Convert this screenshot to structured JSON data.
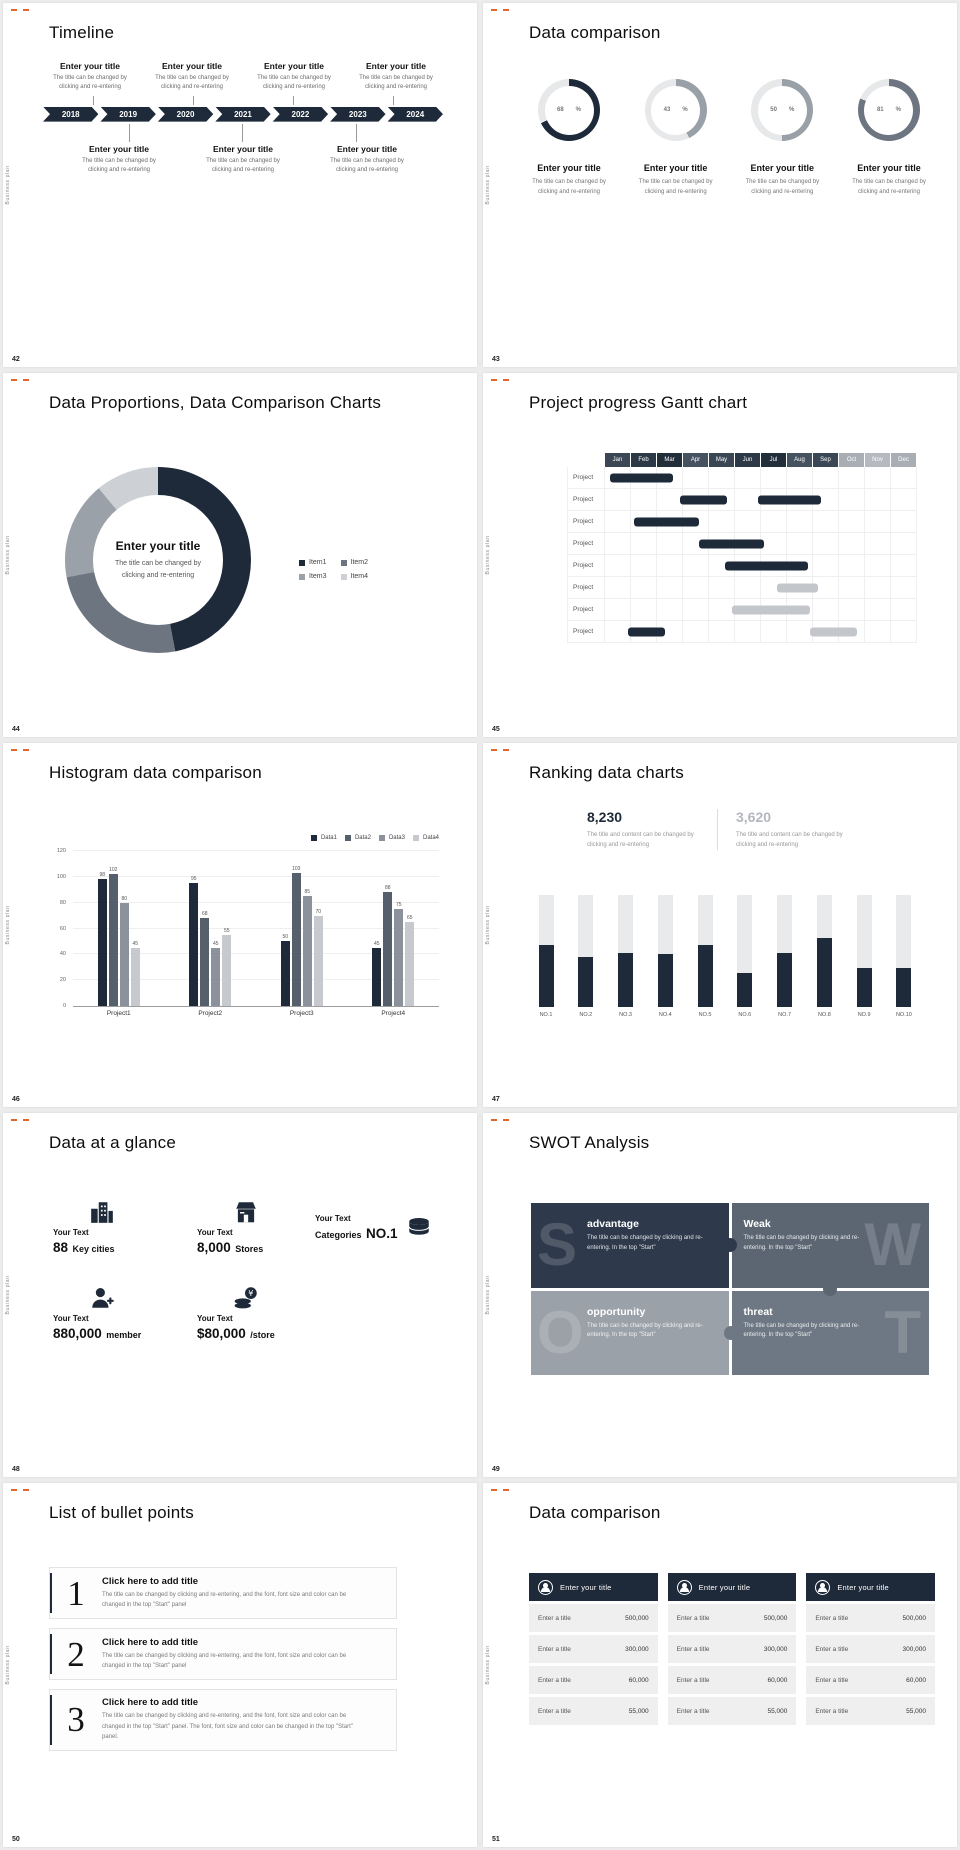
{
  "page": {
    "background": "#ececec",
    "accent_color": "#e2672e",
    "dark_color": "#1e2a39"
  },
  "common": {
    "sidebar_text": "Business plan",
    "percent_sign": "%"
  },
  "slides": {
    "s42": {
      "number": "42",
      "title": "Timeline",
      "years": [
        "2018",
        "2019",
        "2020",
        "2021",
        "2022",
        "2023",
        "2024"
      ],
      "top_items": [
        {
          "title": "Enter your title",
          "desc": "The title can be changed by clicking and re-entering"
        },
        {
          "title": "Enter your title",
          "desc": "The title can be changed by clicking and re-entering"
        },
        {
          "title": "Enter your title",
          "desc": "The title can be changed by clicking and re-entering"
        },
        {
          "title": "Enter your title",
          "desc": "The title can be changed by clicking and re-entering"
        }
      ],
      "bottom_items": [
        {
          "title": "Enter your title",
          "desc": "The title can be changed by clicking and re-entering"
        },
        {
          "title": "Enter your title",
          "desc": "The title can be changed by clicking and re-entering"
        },
        {
          "title": "Enter your title",
          "desc": "The title can be changed by clicking and re-entering"
        }
      ]
    },
    "s43": {
      "number": "43",
      "title": "Data comparison",
      "items": [
        {
          "title": "Enter your title",
          "desc": "The title can be changed by clicking and re-entering"
        },
        {
          "title": "Enter your title",
          "desc": "The title can be changed by clicking and re-entering"
        },
        {
          "title": "Enter your title",
          "desc": "The title can be changed by clicking and re-entering"
        },
        {
          "title": "Enter your title",
          "desc": "The title can be changed by clicking and re-entering"
        }
      ]
    },
    "s44": {
      "number": "44",
      "title": "Data Proportions, Data Comparison Charts",
      "center_title": "Enter your title",
      "center_desc": "The title can be changed by clicking and re-entering"
    },
    "s45": {
      "number": "45",
      "title": "Project progress Gantt chart"
    },
    "s46": {
      "number": "46",
      "title": "Histogram data comparison"
    },
    "s47": {
      "number": "47",
      "title": "Ranking data charts",
      "stat1": {
        "value": "8,230",
        "desc": "The title and content can be changed by clicking and re-entering",
        "color": "#1e2a39"
      },
      "stat2": {
        "value": "3,620",
        "desc": "The title and content can be changed by clicking and re-entering",
        "color": "#b3b7bd"
      }
    },
    "s48": {
      "number": "48",
      "title": "Data at a glance",
      "items": [
        {
          "icon": "buildings-icon",
          "label": "Your Text",
          "big": "88",
          "unit": "Key cities"
        },
        {
          "icon": "store-icon",
          "label": "Your Text",
          "big": "8,000",
          "unit": "Stores"
        },
        {
          "icon": "boxes-icon",
          "label": "Your Text",
          "prefix": "Categories",
          "big": "NO.1"
        },
        {
          "icon": "member-icon",
          "label": "Your Text",
          "big": "880,000",
          "unit": "member"
        },
        {
          "icon": "coins-icon",
          "label": "Your Text",
          "big": "$80,000",
          "unit": "/store"
        }
      ]
    },
    "s49": {
      "number": "49",
      "title": "SWOT Analysis",
      "quads": [
        {
          "letter": "S",
          "title": "advantage",
          "body": "The title can be changed by clicking and re-entering. In the top \"Start\"",
          "bg": "#2e3a4c"
        },
        {
          "letter": "W",
          "title": "Weak",
          "body": "The title can be changed by clicking and re-entering. In the top \"Start\"",
          "bg": "#5c6673"
        },
        {
          "letter": "O",
          "title": "opportunity",
          "body": "The title can be changed by clicking and re-entering. In the top \"Start\"",
          "bg": "#9ba1a9"
        },
        {
          "letter": "T",
          "title": "threat",
          "body": "The title can be changed by clicking and re-entering. In the top \"Start\"",
          "bg": "#6e7884"
        }
      ]
    },
    "s50": {
      "number": "50",
      "title": "List of bullet points",
      "items": [
        {
          "num": "1",
          "title": "Click here to add title",
          "body": "The title can be changed by clicking and re-entering, and the font, font size and color can be changed in the top \"Start\" panel"
        },
        {
          "num": "2",
          "title": "Click here to add title",
          "body": "The title can be changed by clicking and re-entering, and the font, font size and color can be changed in the top \"Start\" panel"
        },
        {
          "num": "3",
          "title": "Click here to add title",
          "body": "The title can be changed by clicking and re-entering, and the font, font size and color can be changed in the top \"Start\" panel. The font, font size and color can be changed in the top \"Start\" panel."
        }
      ]
    },
    "s51": {
      "number": "51",
      "title": "Data comparison",
      "columns": [
        {
          "header": "Enter your title",
          "rows": [
            [
              "Enter a title",
              "500,000"
            ],
            [
              "Enter a title",
              "300,000"
            ],
            [
              "Enter a title",
              "60,000"
            ],
            [
              "Enter a title",
              "55,000"
            ]
          ]
        },
        {
          "header": "Enter your title",
          "rows": [
            [
              "Enter a title",
              "500,000"
            ],
            [
              "Enter a title",
              "300,000"
            ],
            [
              "Enter a title",
              "60,000"
            ],
            [
              "Enter a title",
              "55,000"
            ]
          ]
        },
        {
          "header": "Enter your title",
          "rows": [
            [
              "Enter a title",
              "500,000"
            ],
            [
              "Enter a title",
              "300,000"
            ],
            [
              "Enter a title",
              "60,000"
            ],
            [
              "Enter a title",
              "55,000"
            ]
          ]
        }
      ]
    }
  },
  "chart_data": [
    {
      "id": "progress-rings",
      "type": "pie",
      "values": [
        68,
        43,
        50,
        81
      ],
      "unit": "%",
      "colors": [
        "#1e2a39",
        "#9aa0a8",
        "#9aa0a8",
        "#6d7580"
      ],
      "track_color": "#e7e8e9"
    },
    {
      "id": "donut",
      "type": "pie",
      "labels": [
        "Item1",
        "Item2",
        "Item3",
        "Item4"
      ],
      "values": [
        47,
        25,
        17,
        11
      ],
      "colors": [
        "#1e2a39",
        "#6d7580",
        "#9aa1a9",
        "#cdd1d5"
      ]
    },
    {
      "id": "gantt",
      "type": "bar",
      "months": [
        "Jan",
        "Feb",
        "Mar",
        "Apr",
        "May",
        "Jun",
        "Jul",
        "Aug",
        "Sep",
        "Oct",
        "Nov",
        "Dec"
      ],
      "month_colors": [
        "#3b4754",
        "#2e3947",
        "#232e3b",
        "#46525f",
        "#3b4754",
        "#2e3947",
        "#232e3b",
        "#46525f",
        "#3b4754",
        "#a9aeb5",
        "#b6bac0",
        "#a9aeb5"
      ],
      "bar_colors": {
        "dark": "#1e2a39",
        "gray": "#c3c7cc"
      },
      "rows": [
        {
          "label": "Project",
          "bars": [
            {
              "s": 1.2,
              "e": 3.6,
              "c": "dark"
            }
          ]
        },
        {
          "label": "Project",
          "bars": [
            {
              "s": 3.9,
              "e": 5.7,
              "c": "dark"
            },
            {
              "s": 6.9,
              "e": 9.3,
              "c": "dark"
            }
          ]
        },
        {
          "label": "Project",
          "bars": [
            {
              "s": 2.1,
              "e": 4.6,
              "c": "dark"
            }
          ]
        },
        {
          "label": "Project",
          "bars": [
            {
              "s": 4.6,
              "e": 7.1,
              "c": "dark"
            }
          ]
        },
        {
          "label": "Project",
          "bars": [
            {
              "s": 5.6,
              "e": 8.8,
              "c": "dark"
            }
          ]
        },
        {
          "label": "Project",
          "bars": [
            {
              "s": 7.6,
              "e": 9.2,
              "c": "gray"
            }
          ]
        },
        {
          "label": "Project",
          "bars": [
            {
              "s": 5.9,
              "e": 8.9,
              "c": "gray"
            }
          ]
        },
        {
          "label": "Project",
          "bars": [
            {
              "s": 1.9,
              "e": 3.3,
              "c": "dark"
            },
            {
              "s": 8.9,
              "e": 10.7,
              "c": "gray"
            }
          ]
        }
      ]
    },
    {
      "id": "histogram",
      "type": "bar",
      "categories": [
        "Project1",
        "Project2",
        "Project3",
        "Project4"
      ],
      "series": [
        {
          "name": "Data1",
          "color": "#1e2a39",
          "values": [
            98,
            95,
            50,
            45
          ]
        },
        {
          "name": "Data2",
          "color": "#55606c",
          "values": [
            102,
            68,
            103,
            88
          ]
        },
        {
          "name": "Data3",
          "color": "#8b929b",
          "values": [
            80,
            45,
            85,
            75
          ]
        },
        {
          "name": "Data4",
          "color": "#c6cacf",
          "values": [
            45,
            55,
            70,
            65
          ]
        }
      ],
      "ylim": [
        0,
        120
      ],
      "yticks": [
        0,
        20,
        40,
        60,
        80,
        100,
        120
      ]
    },
    {
      "id": "ranking",
      "type": "bar",
      "categories": [
        "NO.1",
        "NO.2",
        "NO.3",
        "NO.4",
        "NO.5",
        "NO.6",
        "NO.7",
        "NO.8",
        "NO.9",
        "NO.10"
      ],
      "values": [
        55,
        45,
        48,
        47,
        55,
        30,
        48,
        62,
        35,
        35
      ],
      "max": 100,
      "bar_color": "#1e2a39",
      "track_color": "#e9eaeb"
    }
  ]
}
